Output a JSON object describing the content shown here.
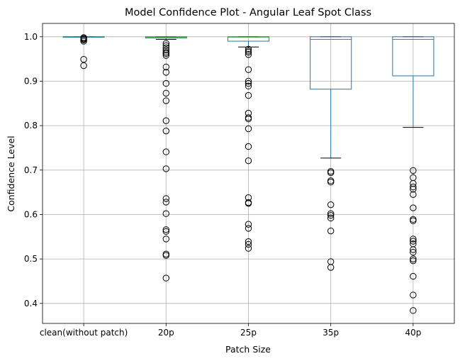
{
  "chart_data": {
    "type": "box",
    "title": "Model Confidence Plot - Angular Leaf Spot Class",
    "xlabel": "Patch Size",
    "ylabel": "Confidence Level",
    "ylim": [
      0.355,
      1.03
    ],
    "yticks": [
      "0.4",
      "0.5",
      "0.6",
      "0.7",
      "0.8",
      "0.9",
      "1.0"
    ],
    "grid": true,
    "colors": {
      "box": "#1f77b4",
      "median": "#2ca02c",
      "whisker": "#1f77b4",
      "cap": "#000000",
      "flier": "#000000",
      "grid": "#b0b0b0"
    },
    "categories": [
      "clean(without patch)",
      "20p",
      "25p",
      "35p",
      "40p"
    ],
    "boxes": [
      {
        "category": "clean(without patch)",
        "whisker_low": 0.9995,
        "q1": 0.9995,
        "median": 1.0,
        "q3": 1.0,
        "whisker_high": 1.0,
        "outliers": [
          0.935,
          0.949,
          0.99,
          0.993,
          0.995,
          0.997,
          0.998
        ]
      },
      {
        "category": "20p",
        "whisker_low": 0.994,
        "q1": 0.997,
        "median": 0.999,
        "q3": 1.0,
        "whisker_high": 1.0,
        "outliers": [
          0.457,
          0.508,
          0.511,
          0.545,
          0.562,
          0.566,
          0.602,
          0.628,
          0.636,
          0.703,
          0.741,
          0.788,
          0.811,
          0.856,
          0.873,
          0.895,
          0.92,
          0.932,
          0.958,
          0.962,
          0.965,
          0.97,
          0.975,
          0.98,
          0.985
        ]
      },
      {
        "category": "25p",
        "whisker_low": 0.977,
        "q1": 0.99,
        "median": 0.999,
        "q3": 1.0,
        "whisker_high": 1.0,
        "outliers": [
          0.524,
          0.533,
          0.539,
          0.569,
          0.578,
          0.625,
          0.627,
          0.638,
          0.721,
          0.753,
          0.793,
          0.815,
          0.818,
          0.828,
          0.868,
          0.889,
          0.895,
          0.9,
          0.926,
          0.96,
          0.965,
          0.968,
          0.972
        ]
      },
      {
        "category": "35p",
        "whisker_low": 0.727,
        "q1": 0.882,
        "median": 0.994,
        "q3": 1.0,
        "whisker_high": 1.0,
        "outliers": [
          0.481,
          0.494,
          0.563,
          0.592,
          0.598,
          0.602,
          0.622,
          0.673,
          0.676,
          0.694,
          0.697
        ]
      },
      {
        "category": "40p",
        "whisker_low": 0.796,
        "q1": 0.912,
        "median": 0.994,
        "q3": 1.0,
        "whisker_high": 1.0,
        "outliers": [
          0.384,
          0.419,
          0.461,
          0.496,
          0.5,
          0.515,
          0.521,
          0.534,
          0.54,
          0.545,
          0.586,
          0.589,
          0.615,
          0.645,
          0.657,
          0.662,
          0.67,
          0.683,
          0.699
        ]
      }
    ]
  }
}
